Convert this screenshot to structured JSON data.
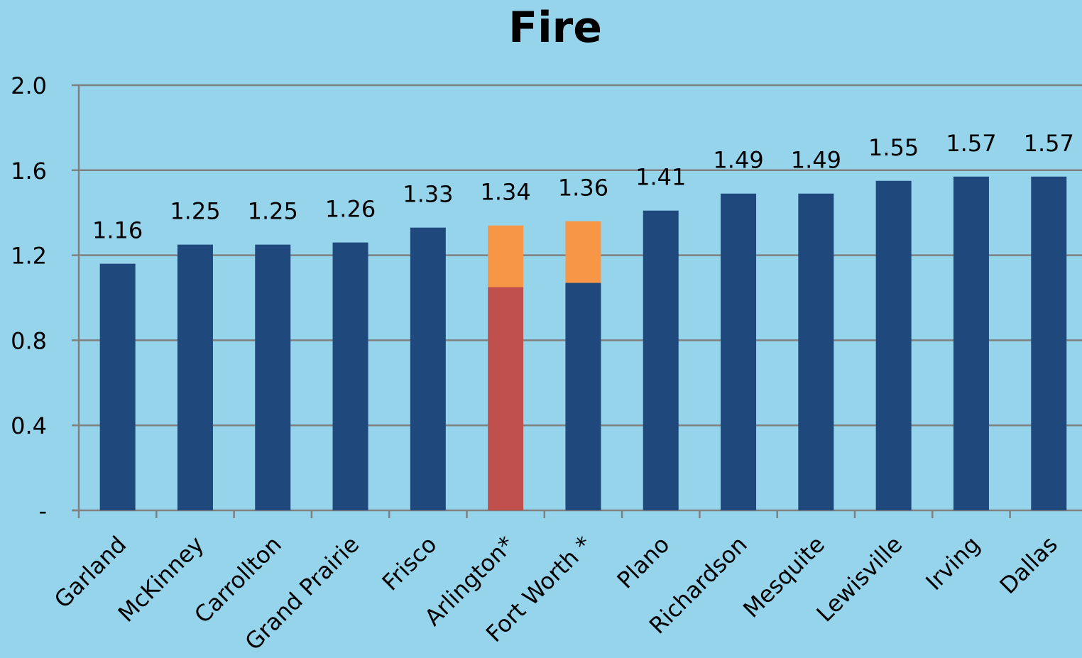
{
  "chart_data": {
    "type": "bar",
    "title": "Fire",
    "xlabel": "",
    "ylabel": "",
    "ylim": [
      0,
      2.0
    ],
    "yticks": [
      {
        "value": 0,
        "label": "-"
      },
      {
        "value": 0.4,
        "label": "0.4"
      },
      {
        "value": 0.8,
        "label": "0.8"
      },
      {
        "value": 1.2,
        "label": "1.2"
      },
      {
        "value": 1.6,
        "label": "1.6"
      },
      {
        "value": 2.0,
        "label": "2.0"
      }
    ],
    "grid": true,
    "legend": "none",
    "categories": [
      "Garland",
      "McKinney",
      "Carrollton",
      "Grand Prairie",
      "Frisco",
      "Arlington*",
      "Fort Worth *",
      "Plano",
      "Richardson",
      "Mesquite",
      "Lewisville",
      "Irving",
      "Dallas"
    ],
    "totals": [
      1.16,
      1.25,
      1.25,
      1.26,
      1.33,
      1.34,
      1.36,
      1.41,
      1.49,
      1.49,
      1.55,
      1.57,
      1.57
    ],
    "total_labels": [
      "1.16",
      "1.25",
      "1.25",
      "1.26",
      "1.33",
      "1.34",
      "1.36",
      "1.41",
      "1.49",
      "1.49",
      "1.55",
      "1.57",
      "1.57"
    ],
    "bars": [
      [
        {
          "value": 1.16,
          "color": "#1F497D"
        }
      ],
      [
        {
          "value": 1.25,
          "color": "#1F497D"
        }
      ],
      [
        {
          "value": 1.25,
          "color": "#1F497D"
        }
      ],
      [
        {
          "value": 1.26,
          "color": "#1F497D"
        }
      ],
      [
        {
          "value": 1.33,
          "color": "#1F497D"
        }
      ],
      [
        {
          "value": 1.05,
          "color": "#C0504D"
        },
        {
          "value": 0.29,
          "color": "#F79646"
        }
      ],
      [
        {
          "value": 1.07,
          "color": "#1F497D"
        },
        {
          "value": 0.29,
          "color": "#F79646"
        }
      ],
      [
        {
          "value": 1.41,
          "color": "#1F497D"
        }
      ],
      [
        {
          "value": 1.49,
          "color": "#1F497D"
        }
      ],
      [
        {
          "value": 1.49,
          "color": "#1F497D"
        }
      ],
      [
        {
          "value": 1.55,
          "color": "#1F497D"
        }
      ],
      [
        {
          "value": 1.57,
          "color": "#1F497D"
        }
      ],
      [
        {
          "value": 1.57,
          "color": "#1F497D"
        }
      ]
    ],
    "colors": {
      "background": "#96D4EC",
      "gridline": "#808080",
      "primary": "#1F497D",
      "arlington_base": "#C0504D",
      "highlight": "#F79646"
    }
  }
}
